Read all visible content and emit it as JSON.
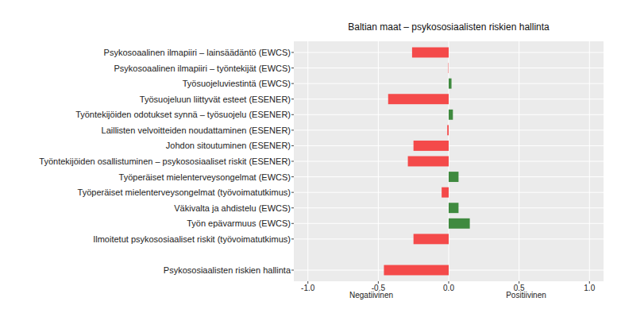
{
  "chart_data": {
    "type": "bar",
    "orientation": "horizontal",
    "title": "Baltian maat – psykososiaalisten riskien hallinta",
    "categories": [
      "Psykosoaalinen ilmapiiri – lainsäädäntö (EWCS)",
      "Psykosoaalinen ilmapiiri – työntekijät (EWCS)",
      "Työsuojeluviestintä (EWCS)",
      "Työsuojeluun liittyvät esteet (ESENER)",
      "Työntekijöiden odotukset synnä – työsuojelu (ESENER)",
      "Laillisten velvoitteiden noudattaminen (ESENER)",
      "Johdon sitoutuminen (ESENER)",
      "Työntekijöiden osallistuminen – psykososiaaliset riskit (ESENER)",
      "Työperäiset mielenterveysongelmat (EWCS)",
      "Työperäiset mielenterveysongelmat (työvoimatutkimus)",
      "Väkivalta ja ahdistelu (EWCS)",
      "Työn epävarmuus (EWCS)",
      "Ilmoitetut psykososiaaliset riskit (työvoimatutkimus)",
      null,
      "Psykososiaalisten riskien hallinta"
    ],
    "values": [
      -0.26,
      -0.005,
      0.02,
      -0.43,
      0.03,
      -0.01,
      -0.25,
      -0.29,
      0.07,
      -0.05,
      0.07,
      0.15,
      -0.25,
      null,
      -0.46
    ],
    "colors": [
      "#f44a4a",
      "#f4a0a0",
      "#3f8a3f",
      "#f44a4a",
      "#3f8a3f",
      "#f44a4a",
      "#f44a4a",
      "#f44a4a",
      "#3f8a3f",
      "#f44a4a",
      "#3f8a3f",
      "#3f8a3f",
      "#f44a4a",
      null,
      "#f44a4a"
    ],
    "xlim": [
      -1.1,
      1.1
    ],
    "xticks": [
      {
        "value": -1,
        "label": "-1.0"
      },
      -0.5,
      {
        "value": 0,
        "label": "0.0"
      },
      0.5,
      {
        "value": 1,
        "label": "1.0"
      }
    ],
    "grid": true,
    "annotations": [
      "Negatiivinen",
      "Positiivinen"
    ]
  }
}
